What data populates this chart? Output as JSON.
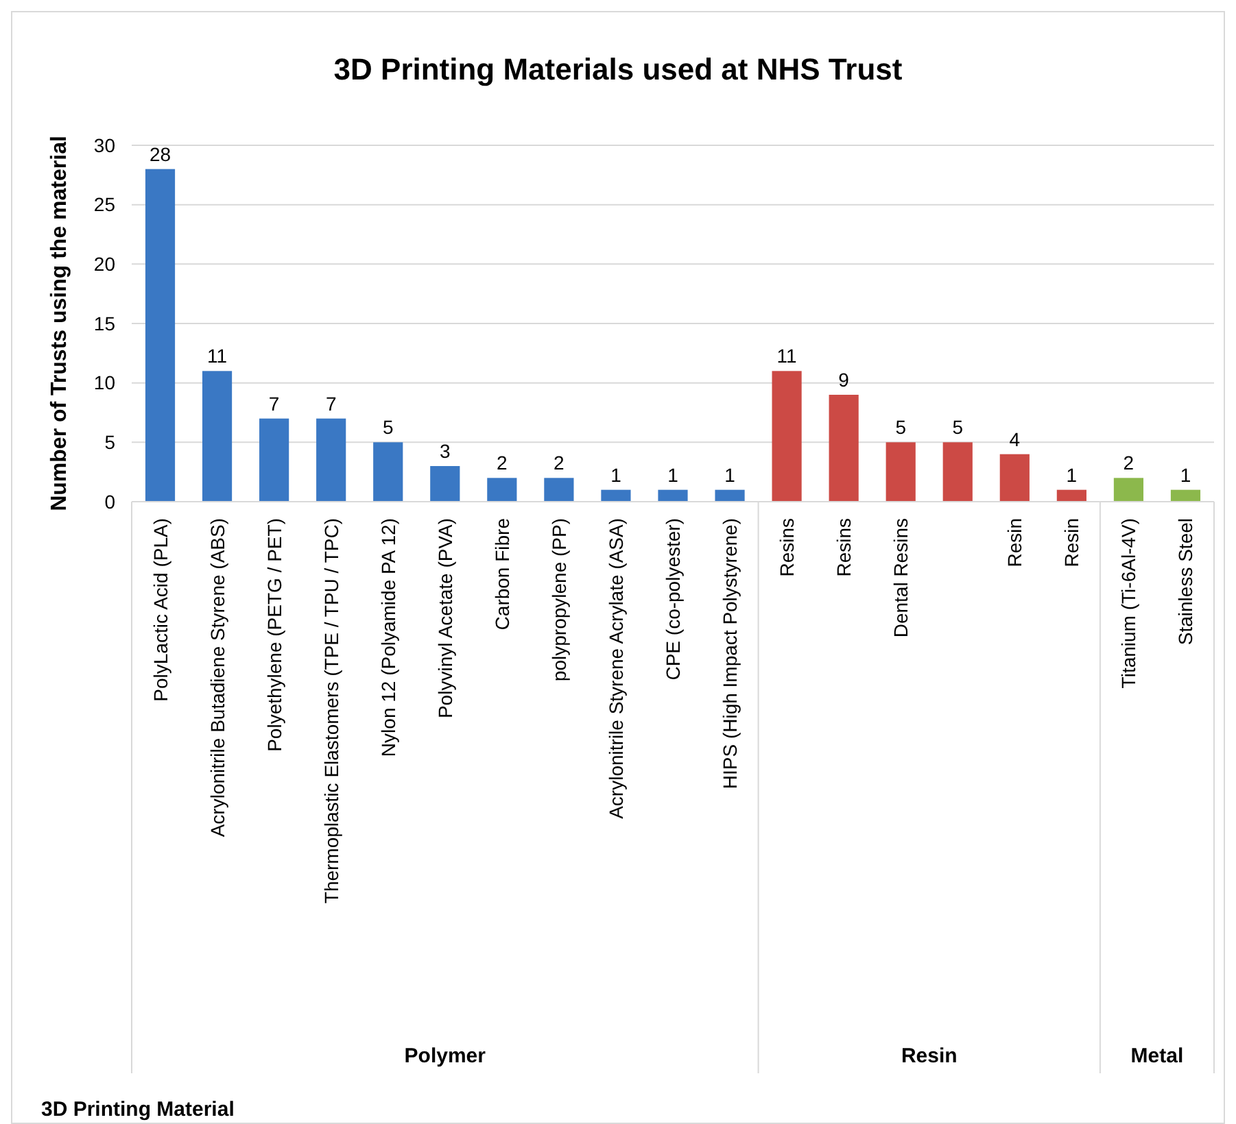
{
  "chart_data": {
    "type": "bar",
    "title": "3D Printing Materials used at NHS Trust",
    "ylabel": "Number of Trusts using the material",
    "categories": [
      "PolyLactic Acid (PLA)",
      "Acrylonitrile Butadiene Styrene (ABS)",
      "Polyethylene (PETG / PET)",
      "Thermoplastic Elastomers (TPE / TPU / TPC)",
      "Nylon 12 (Polyamide PA 12)",
      "Polyvinyl Acetate (PVA)",
      "Carbon Fibre",
      "polypropylene (PP)",
      "Acrylonitrile Styrene Acrylate (ASA)",
      "CPE (co-polyester)",
      "HIPS (High Impact Polystyrene)",
      "Resins",
      "Resins",
      "Dental Resins",
      null,
      "Resin",
      "Resin",
      "Titanium (Ti-6Al-4V)",
      "Stainless Steel"
    ],
    "values": [
      28,
      11,
      7,
      7,
      5,
      3,
      2,
      2,
      1,
      1,
      1,
      11,
      9,
      5,
      5,
      4,
      1,
      2,
      1
    ],
    "colors": [
      "#3a78c4",
      "#3a78c4",
      "#3a78c4",
      "#3a78c4",
      "#3a78c4",
      "#3a78c4",
      "#3a78c4",
      "#3a78c4",
      "#3a78c4",
      "#3a78c4",
      "#3a78c4",
      "#cc4a45",
      "#cc4a45",
      "#cc4a45",
      "#cc4a45",
      "#cc4a45",
      "#cc4a45",
      "#8cb84c",
      "#8cb84c"
    ],
    "annotations": [
      "Polymer",
      "Resin",
      "Metal",
      "3D Printing Material"
    ],
    "ylim": [
      0,
      30
    ],
    "yticks": [
      0,
      5,
      10,
      15,
      20,
      25,
      30
    ],
    "grid": "y",
    "data_labels": true
  }
}
